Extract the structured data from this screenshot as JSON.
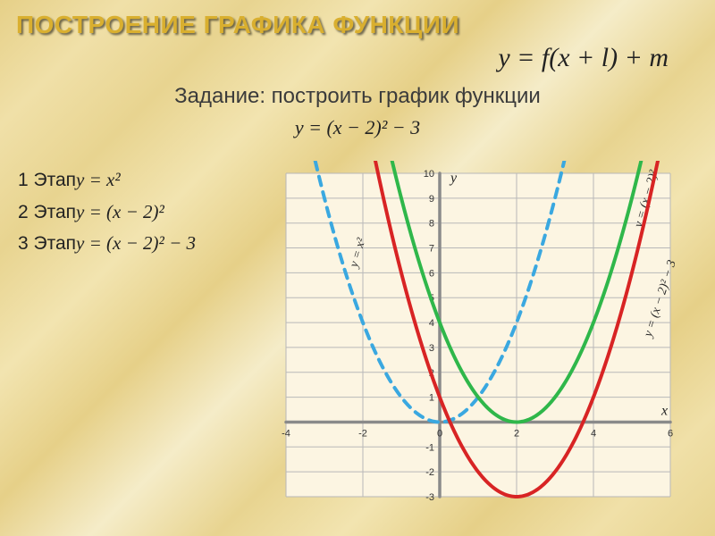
{
  "title": {
    "text": "ПОСТРОЕНИЕ ГРАФИКА ФУНКЦИИ",
    "color": "#d9af2f",
    "fontsize": 28
  },
  "main_formula": {
    "text": "y = f(x + l) + m",
    "fontsize": 30
  },
  "task": {
    "text": "Задание: построить график функции",
    "fontsize": 24
  },
  "task_formula": {
    "text": "y = (x − 2)² − 3",
    "fontsize": 22
  },
  "steps": {
    "fontsize": 21,
    "items": [
      {
        "label": "1 Этап",
        "eq": "y = x²"
      },
      {
        "label": "2 Этап",
        "eq": "y = (x − 2)²"
      },
      {
        "label": "3 Этап",
        "eq": "y = (x − 2)² − 3"
      }
    ]
  },
  "chart": {
    "background": "#fcf5e2",
    "grid_color": "#b8b8b8",
    "axis_color": "#8a8a8a",
    "axis_width": 3.5,
    "tick_fontsize": 11,
    "label_fontsize": 16,
    "label_fontstyle": "italic",
    "xlim": [
      -4,
      6
    ],
    "ylim": [
      -3,
      10
    ],
    "x_gridstep": 2,
    "y_gridstep": 1,
    "x_ticks": [
      -4,
      -2,
      0,
      2,
      4,
      6
    ],
    "y_ticks": [
      -3,
      -2,
      -1,
      0,
      1,
      2,
      3,
      4,
      5,
      6,
      7,
      8,
      9,
      10
    ],
    "curves": [
      {
        "name": "y = x²",
        "color": "#3aa8e0",
        "width": 4,
        "dash": "10,8",
        "h": 0,
        "k": 0,
        "label_at": {
          "x": -2.15,
          "y": 6.2,
          "rot": -74
        }
      },
      {
        "name": "y = (x − 2)²",
        "color": "#2fb74a",
        "width": 4,
        "dash": "",
        "h": 2,
        "k": 0,
        "label_at": {
          "x": 5.25,
          "y": 7.8,
          "rot": -74
        }
      },
      {
        "name": "y = (x − 2)² − 3",
        "color": "#d82424",
        "width": 4,
        "dash": "",
        "h": 2,
        "k": -3,
        "label_at": {
          "x": 5.5,
          "y": 3.4,
          "rot": -72
        }
      }
    ],
    "axis_labels": {
      "x": "x",
      "y": "y"
    }
  }
}
